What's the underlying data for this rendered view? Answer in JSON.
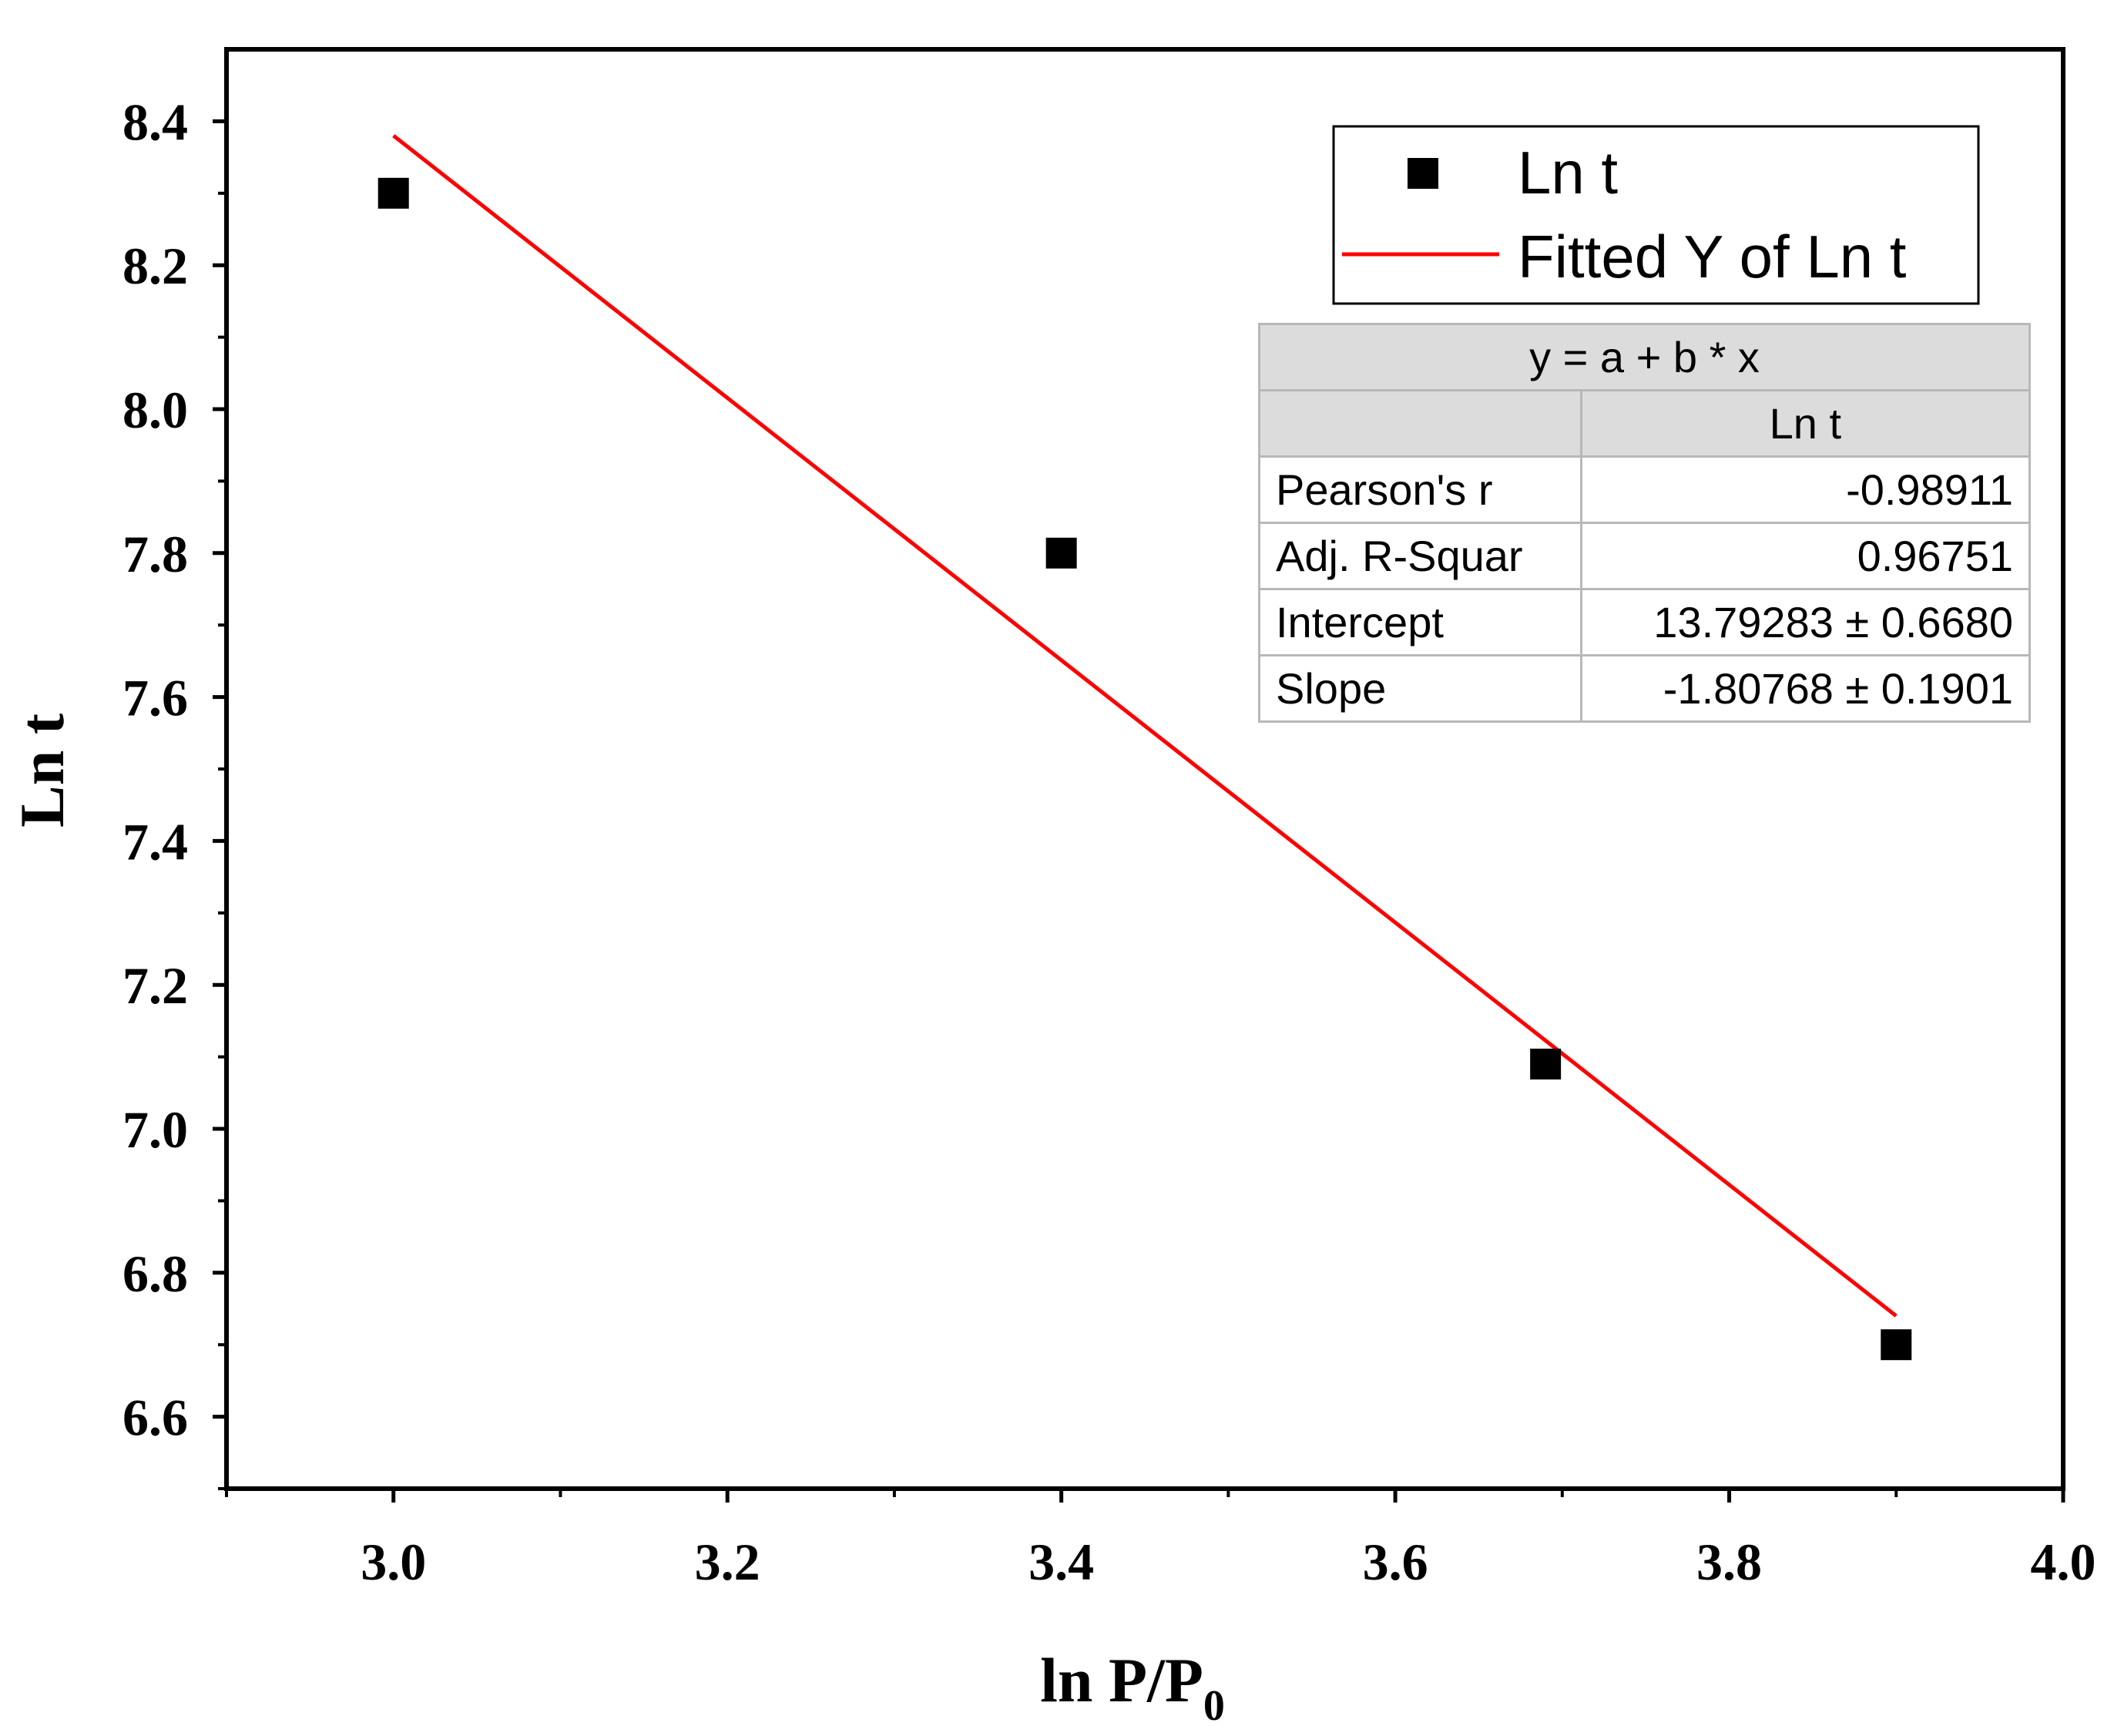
{
  "chart_data": {
    "type": "scatter",
    "xlabel": "ln P/P",
    "xlabel_subscript": "0",
    "ylabel": "Ln t",
    "xlim": [
      2.9,
      4.0
    ],
    "ylim": [
      6.5,
      8.5
    ],
    "x_ticks": [
      "3.0",
      "3.2",
      "3.4",
      "3.6",
      "3.8",
      "4.0"
    ],
    "y_ticks": [
      "6.6",
      "6.8",
      "7.0",
      "7.2",
      "7.4",
      "7.6",
      "7.8",
      "8.0",
      "8.2",
      "8.4"
    ],
    "grid": false,
    "legend_position": "top-right",
    "series": [
      {
        "name": "Ln t",
        "kind": "scatter",
        "marker": "square",
        "color": "#000000",
        "x": [
          3.0,
          3.4,
          3.69,
          3.9
        ],
        "y": [
          8.3,
          7.8,
          7.09,
          6.7
        ]
      },
      {
        "name": "Fitted Y of Ln t",
        "kind": "line",
        "color": "#ff0000",
        "x": [
          3.0,
          3.9
        ],
        "y": [
          8.38,
          6.74
        ]
      }
    ]
  },
  "fit_table": {
    "equation": "y = a + b * x",
    "column_header": "Ln t",
    "rows": [
      {
        "label": "Pearson's r",
        "value": "-0.98911"
      },
      {
        "label": "Adj. R-Squar",
        "value": "0.96751"
      },
      {
        "label": "Intercept",
        "value": "13.79283 ± 0.6680"
      },
      {
        "label": "Slope",
        "value": "-1.80768 ± 0.1901"
      }
    ]
  }
}
